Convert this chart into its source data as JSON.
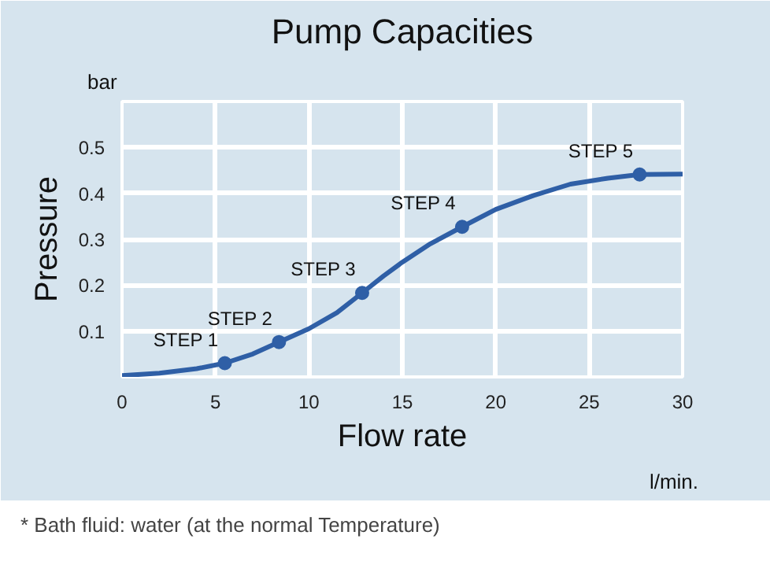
{
  "chart_data": {
    "type": "line",
    "title": "Pump Capacities",
    "xlabel": "Flow rate",
    "ylabel": "Pressure",
    "xlim": [
      0,
      30
    ],
    "xticks": [
      0,
      5,
      10,
      15,
      20,
      25,
      30
    ],
    "ylim": [
      0,
      0.6
    ],
    "yticks": [
      0.1,
      0.2,
      0.3,
      0.4,
      0.5
    ],
    "grid": true,
    "line_style": "solid",
    "series": [
      {
        "color": "#2f5fa6",
        "marker": "none",
        "x": [
          0,
          2,
          4,
          5.5,
          7,
          8.4,
          10,
          11.5,
          12.85,
          14,
          15,
          16.5,
          18.2,
          20,
          22,
          24,
          26,
          27.7,
          30
        ],
        "values": [
          0.003,
          0.008,
          0.018,
          0.03,
          0.05,
          0.076,
          0.105,
          0.14,
          0.183,
          0.22,
          0.25,
          0.29,
          0.327,
          0.365,
          0.395,
          0.42,
          0.433,
          0.441,
          0.442
        ]
      },
      {
        "type": "scatter",
        "color": "#2f5fa6",
        "marker": "circle",
        "x": [
          5.5,
          8.4,
          12.85,
          18.2,
          27.7
        ],
        "values": [
          0.03,
          0.076,
          0.183,
          0.327,
          0.441
        ]
      }
    ],
    "annotations": [
      {
        "text": "STEP 1",
        "x": 5.5,
        "y": 0.03
      },
      {
        "text": "STEP 2",
        "x": 8.4,
        "y": 0.076
      },
      {
        "text": "STEP 3",
        "x": 12.85,
        "y": 0.183
      },
      {
        "text": "STEP 4",
        "x": 18.2,
        "y": 0.327
      },
      {
        "text": "STEP 5",
        "x": 27.7,
        "y": 0.441
      },
      "bar",
      "l/min.",
      "* Bath fluid: water (at the normal Temperature)"
    ]
  }
}
